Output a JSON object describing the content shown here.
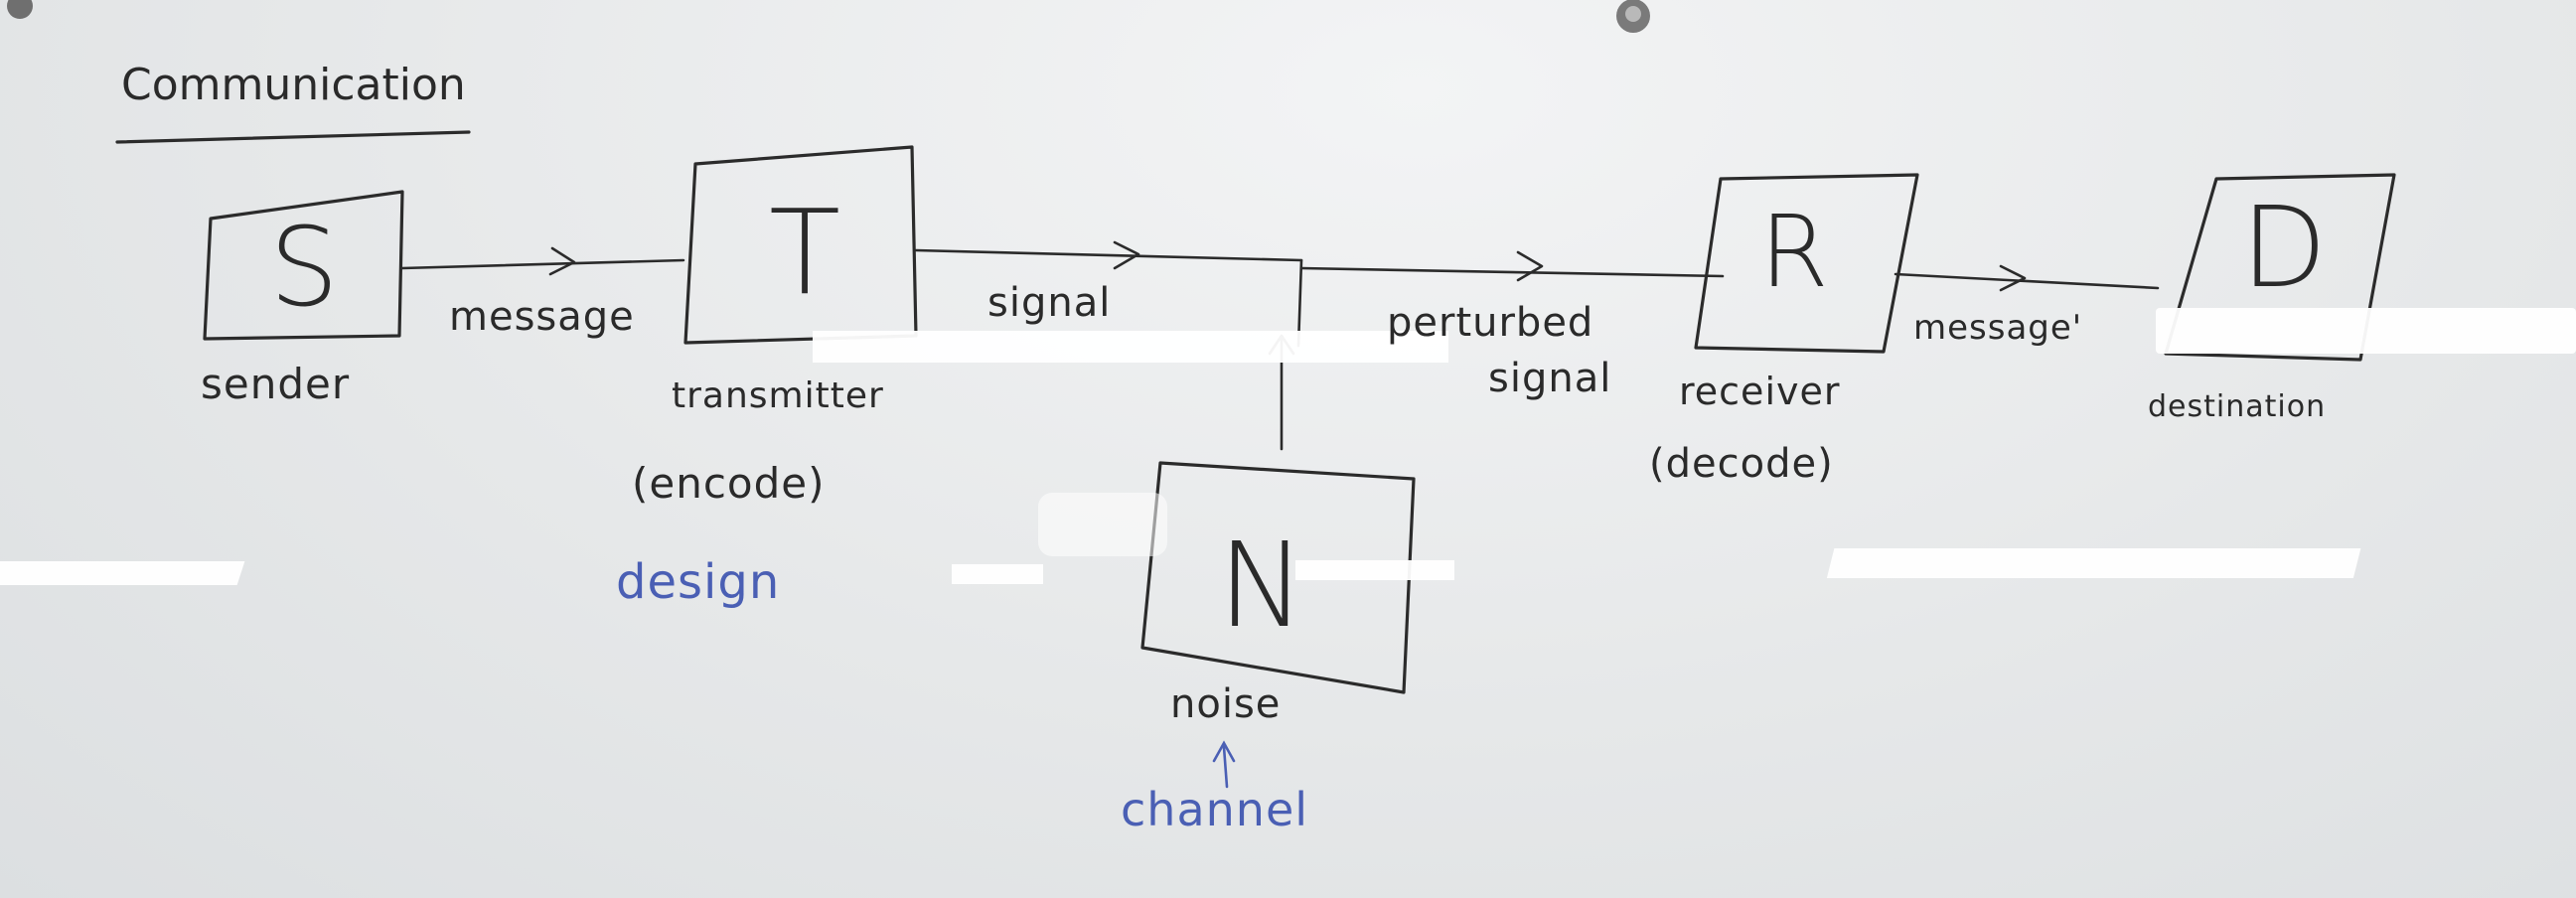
{
  "title": "Communication",
  "nodes": {
    "sender": {
      "letter": "S",
      "label": "sender"
    },
    "transmitter": {
      "letter": "T",
      "label": "transmitter",
      "sublabel": "(encode)",
      "note": "design"
    },
    "noise": {
      "letter": "N",
      "label": "noise",
      "note": "channel"
    },
    "receiver": {
      "letter": "R",
      "label": "receiver",
      "sublabel": "(decode)"
    },
    "destination": {
      "letter": "D",
      "label": "destination"
    }
  },
  "edges": {
    "sender_transmitter": "message",
    "transmitter_mix": "signal",
    "mix_receiver": "perturbed signal",
    "receiver_destination": "message'"
  },
  "edge_lines": {
    "mix_receiver_line1": "perturbed",
    "mix_receiver_line2": "signal"
  },
  "colors": {
    "ink": "#2b2b2b",
    "blue_ink": "#4a5fb4",
    "board": "#e9ebec"
  }
}
